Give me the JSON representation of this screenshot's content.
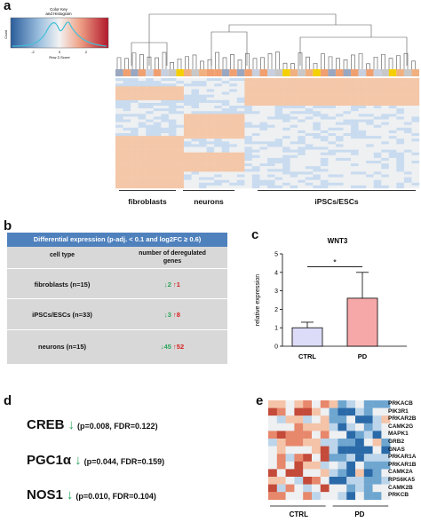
{
  "panels": {
    "a": "a",
    "b": "b",
    "c": "c",
    "d": "d",
    "e": "e"
  },
  "color_key": {
    "title_line1": "Color Key",
    "title_line2": "and Histogram",
    "ylabel": "Count",
    "xlabel": "Row Z-Score",
    "ticks": [
      "-2",
      "0",
      "2"
    ],
    "colors": {
      "low": "#2b5d9b",
      "mid": "#f2f2f2",
      "high": "#b2182b"
    }
  },
  "heatmap_a": {
    "clusters": [
      "fibroblasts",
      "neurons",
      "iPSCs/ESCs"
    ],
    "colors": {
      "blue": "#c9dbef",
      "orange": "#f4c7a8",
      "neutral": "#eef0f2"
    }
  },
  "table_b": {
    "header": "Differential expression (p-adj. < 0.1 and log2FC ≥ 0.6)",
    "col1": "cell type",
    "col2_line1": "number of deregulated",
    "col2_line2": "genes",
    "rows": [
      {
        "cell_type": "fibroblasts (n=15)",
        "down": "↓2",
        "up": "↑1"
      },
      {
        "cell_type": "iPSCs/ESCs (n=33)",
        "down": "↓3",
        "up": "↑8"
      },
      {
        "cell_type": "neurons (n=15)",
        "down": "↓45",
        "up": "↑52"
      }
    ]
  },
  "panel_d": {
    "genes": [
      {
        "name": "CREB",
        "arrow": "↓",
        "stats": "(p=0.008, FDR=0.122)"
      },
      {
        "name": "PGC1α",
        "arrow": "↓",
        "stats": "(p=0.044, FDR=0.159)"
      },
      {
        "name": "NOS1",
        "arrow": "↓",
        "stats": "(p=0.010, FDR=0.104)"
      }
    ]
  },
  "heatmap_e": {
    "genes": [
      "PRKACB",
      "PIK3R1",
      "PRKAR2B",
      "CAMK2G",
      "MAPK1",
      "GRB2",
      "GNAS",
      "PRKAR1A",
      "PRKAR1B",
      "CAMK2A",
      "RPS6KA5",
      "CAMK2B",
      "PRKCB"
    ],
    "groups": [
      "CTRL",
      "PD"
    ]
  },
  "chart_data": {
    "type": "bar",
    "title": "WNT3",
    "categories": [
      "CTRL",
      "PD"
    ],
    "values": [
      1.0,
      2.6
    ],
    "errors": [
      0.3,
      1.4
    ],
    "ylabel": "relative expression",
    "ylim": [
      0,
      5
    ],
    "yticks": [
      "0",
      "1",
      "2",
      "3",
      "4",
      "5"
    ],
    "significance": "*",
    "colors": [
      "#dcdcf8",
      "#f6a8a8"
    ]
  }
}
